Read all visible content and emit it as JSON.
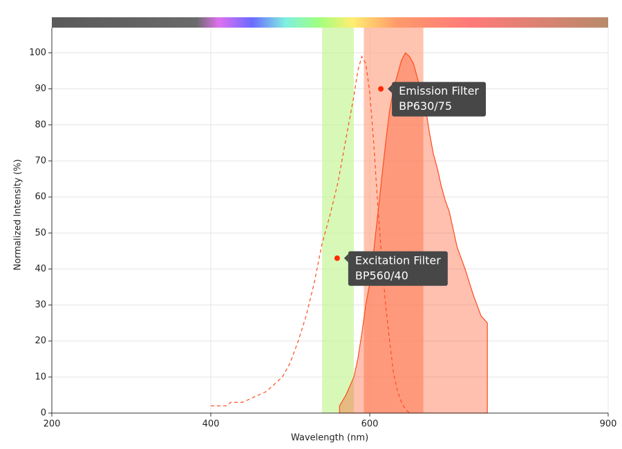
{
  "chart_data": {
    "type": "line",
    "xlabel": "Wavelength (nm)",
    "ylabel": "Normalized Intensity (%)",
    "xlim": [
      200,
      900
    ],
    "ylim": [
      0,
      107
    ],
    "xticks": [
      200,
      400,
      600,
      900
    ],
    "yticks": [
      0,
      10,
      20,
      30,
      40,
      50,
      60,
      70,
      80,
      90,
      100
    ],
    "grid": true,
    "bands": [
      {
        "range": [
          540,
          580
        ],
        "color": "#c8f59a",
        "label": [
          "Excitation Filter",
          "BP560/40"
        ],
        "marker": [
          559,
          43
        ]
      },
      {
        "range": [
          592.5,
          667.5
        ],
        "color": "#ffab8f",
        "label": [
          "Emission Filter",
          "BP630/75"
        ],
        "marker": [
          614,
          90
        ]
      }
    ],
    "series": [
      {
        "color": "#ff4a1c",
        "style": "dashed",
        "fill": false,
        "x": [
          400,
          420,
          425,
          440,
          450,
          460,
          470,
          480,
          490,
          500,
          510,
          520,
          530,
          540,
          550,
          560,
          570,
          580,
          585,
          590,
          595,
          600,
          605,
          610,
          615,
          620,
          625,
          630,
          635,
          640,
          645,
          650
        ],
        "values": [
          2,
          2,
          3,
          3,
          4,
          5,
          6,
          8,
          10,
          14,
          20,
          27,
          36,
          47,
          55,
          64,
          76,
          88,
          95,
          99,
          97,
          89,
          75,
          58,
          43,
          30,
          20,
          11,
          6,
          3,
          1,
          0
        ]
      },
      {
        "color": "#ff4a1c",
        "style": "solid",
        "fill": true,
        "x": [
          562,
          570,
          580,
          585,
          590,
          595,
          600,
          605,
          610,
          615,
          620,
          625,
          630,
          635,
          640,
          645,
          650,
          655,
          660,
          665,
          670,
          675,
          680,
          685,
          690,
          695,
          700,
          710,
          720,
          730,
          740,
          748
        ],
        "values": [
          2,
          5,
          10,
          15,
          22,
          30,
          36,
          45,
          55,
          65,
          75,
          84,
          90,
          94,
          98,
          100,
          99,
          97,
          93,
          89,
          85,
          78,
          72,
          68,
          63,
          59,
          56,
          46,
          40,
          33,
          27,
          25
        ]
      }
    ]
  }
}
